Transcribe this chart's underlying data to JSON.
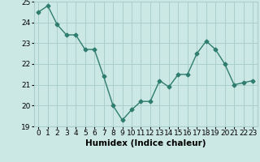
{
  "x": [
    0,
    1,
    2,
    3,
    4,
    5,
    6,
    7,
    8,
    9,
    10,
    11,
    12,
    13,
    14,
    15,
    16,
    17,
    18,
    19,
    20,
    21,
    22,
    23
  ],
  "y": [
    24.5,
    24.8,
    23.9,
    23.4,
    23.4,
    22.7,
    22.7,
    21.4,
    20.0,
    19.3,
    19.8,
    20.2,
    20.2,
    21.2,
    20.9,
    21.5,
    21.5,
    22.5,
    23.1,
    22.7,
    22.0,
    21.0,
    21.1,
    21.2
  ],
  "xlabel": "Humidex (Indice chaleur)",
  "ylabel": "",
  "ylim": [
    19,
    25
  ],
  "xlim": [
    -0.5,
    23.5
  ],
  "yticks": [
    19,
    20,
    21,
    22,
    23,
    24,
    25
  ],
  "xticks": [
    0,
    1,
    2,
    3,
    4,
    5,
    6,
    7,
    8,
    9,
    10,
    11,
    12,
    13,
    14,
    15,
    16,
    17,
    18,
    19,
    20,
    21,
    22,
    23
  ],
  "line_color": "#2e7d6e",
  "marker": "D",
  "marker_size": 2.5,
  "bg_color": "#cce8e4",
  "grid_color": "#aacfcc",
  "label_fontsize": 7.5,
  "tick_fontsize": 6.5
}
